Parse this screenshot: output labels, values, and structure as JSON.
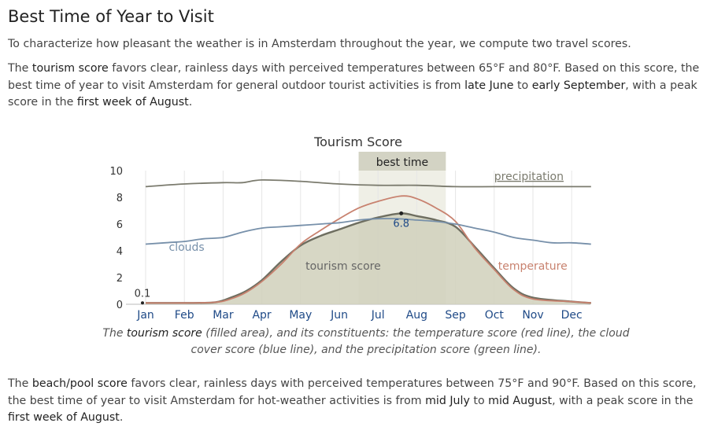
{
  "page": {
    "heading": "Best Time of Year to Visit",
    "intro": "To characterize how pleasant the weather is in Amsterdam throughout the year, we compute two travel scores.",
    "tourism_paragraph": {
      "t1": "The ",
      "h1": "tourism score",
      "t2": " favors clear, rainless days with perceived temperatures between 65°F and 80°F. Based on this score, the best time of year to visit Amsterdam for general outdoor tourist activities is from ",
      "h2": "late June",
      "t3": " to ",
      "h3": "early September",
      "t4": ", with a peak score in the ",
      "h4": "first week of August",
      "t5": "."
    },
    "caption": {
      "t1": "The ",
      "h1": "tourism score",
      "t2": " (filled area), and its constituents: the temperature score (red line), the cloud cover score (blue line), and the precipitation score (green line)."
    },
    "beach_paragraph": {
      "t1": "The ",
      "h1": "beach/pool score",
      "t2": " favors clear, rainless days with perceived temperatures between 75°F and 90°F. Based on this score, the best time of year to visit Amsterdam for hot-weather activities is from ",
      "h2": "mid July",
      "t3": " to ",
      "h3": "mid August",
      "t4": ", with a peak score in the ",
      "h4": "first week of August",
      "t5": "."
    }
  },
  "colors": {
    "tourism_fill": "#d0d0bb",
    "tourism_line": "#6e6e60",
    "temperature": "#c8826f",
    "clouds": "#7790aa",
    "precipitation": "#7b7b6e",
    "best_time_band": "#efefe6",
    "best_time_header": "#d3d3c4",
    "month_label": "#1f4a87"
  },
  "chart_data": {
    "type": "area",
    "title": "Tourism Score",
    "x_categories": [
      "Jan",
      "Feb",
      "Mar",
      "Apr",
      "May",
      "Jun",
      "Jul",
      "Aug",
      "Sep",
      "Oct",
      "Nov",
      "Dec"
    ],
    "ylim": [
      0,
      10
    ],
    "yticks": [
      0,
      2,
      4,
      6,
      8,
      10
    ],
    "grid": "vertical",
    "best_time_label": "best time",
    "best_time_range": [
      5.5,
      7.75
    ],
    "annotations": {
      "min": {
        "x": 0,
        "value": 0.1,
        "label": "0.1"
      },
      "peak": {
        "x": 6.6,
        "value": 6.8,
        "label": "6.8"
      }
    },
    "series": [
      {
        "name": "tourism score",
        "role": "fill",
        "points": [
          [
            0,
            0.1
          ],
          [
            1,
            0.1
          ],
          [
            1.8,
            0.15
          ],
          [
            2.2,
            0.5
          ],
          [
            2.6,
            1.0
          ],
          [
            3,
            1.8
          ],
          [
            3.5,
            3.2
          ],
          [
            4,
            4.4
          ],
          [
            4.5,
            5.1
          ],
          [
            5,
            5.6
          ],
          [
            5.5,
            6.1
          ],
          [
            6,
            6.5
          ],
          [
            6.6,
            6.8
          ],
          [
            7,
            6.6
          ],
          [
            7.5,
            6.3
          ],
          [
            8,
            5.8
          ],
          [
            8.5,
            4.3
          ],
          [
            9,
            2.7
          ],
          [
            9.5,
            1.2
          ],
          [
            10,
            0.5
          ],
          [
            11,
            0.2
          ],
          [
            11.5,
            0.1
          ]
        ]
      },
      {
        "name": "temperature",
        "role": "line",
        "points": [
          [
            0,
            0.1
          ],
          [
            1,
            0.1
          ],
          [
            1.8,
            0.15
          ],
          [
            2.2,
            0.4
          ],
          [
            2.6,
            0.9
          ],
          [
            3,
            1.7
          ],
          [
            3.5,
            3.0
          ],
          [
            4,
            4.5
          ],
          [
            4.5,
            5.5
          ],
          [
            5,
            6.4
          ],
          [
            5.5,
            7.2
          ],
          [
            6,
            7.7
          ],
          [
            6.6,
            8.1
          ],
          [
            7,
            7.9
          ],
          [
            7.5,
            7.2
          ],
          [
            8,
            6.2
          ],
          [
            8.5,
            4.2
          ],
          [
            9,
            2.6
          ],
          [
            9.5,
            1.1
          ],
          [
            10,
            0.4
          ],
          [
            11,
            0.2
          ],
          [
            11.5,
            0.1
          ]
        ]
      },
      {
        "name": "clouds",
        "role": "line",
        "points": [
          [
            0,
            4.5
          ],
          [
            0.5,
            4.6
          ],
          [
            1,
            4.7
          ],
          [
            1.5,
            4.9
          ],
          [
            2,
            5.0
          ],
          [
            2.5,
            5.4
          ],
          [
            3,
            5.7
          ],
          [
            3.5,
            5.8
          ],
          [
            4,
            5.9
          ],
          [
            4.5,
            6.0
          ],
          [
            5,
            6.1
          ],
          [
            5.5,
            6.3
          ],
          [
            6,
            6.4
          ],
          [
            6.5,
            6.4
          ],
          [
            7,
            6.3
          ],
          [
            7.5,
            6.2
          ],
          [
            8,
            6.0
          ],
          [
            8.5,
            5.7
          ],
          [
            9,
            5.4
          ],
          [
            9.5,
            5.0
          ],
          [
            10,
            4.8
          ],
          [
            10.5,
            4.6
          ],
          [
            11,
            4.6
          ],
          [
            11.5,
            4.5
          ]
        ]
      },
      {
        "name": "precipitation",
        "role": "line",
        "points": [
          [
            0,
            8.8
          ],
          [
            1,
            9.0
          ],
          [
            2,
            9.1
          ],
          [
            2.5,
            9.1
          ],
          [
            3,
            9.3
          ],
          [
            4,
            9.2
          ],
          [
            5,
            9.0
          ],
          [
            6,
            8.9
          ],
          [
            7,
            8.9
          ],
          [
            8,
            8.8
          ],
          [
            9,
            8.8
          ],
          [
            10,
            8.8
          ],
          [
            11,
            8.8
          ],
          [
            11.5,
            8.8
          ]
        ]
      }
    ],
    "series_labels": {
      "precipitation": {
        "label": "precipitation",
        "x": 9.0,
        "value": 9.3
      },
      "clouds": {
        "label": "clouds",
        "x": 0.6,
        "value": 4.0
      },
      "tourism": {
        "label": "tourism score",
        "x": 5.1,
        "value": 2.6
      },
      "temperature": {
        "label": "temperature",
        "x": 9.1,
        "value": 2.6
      }
    }
  }
}
